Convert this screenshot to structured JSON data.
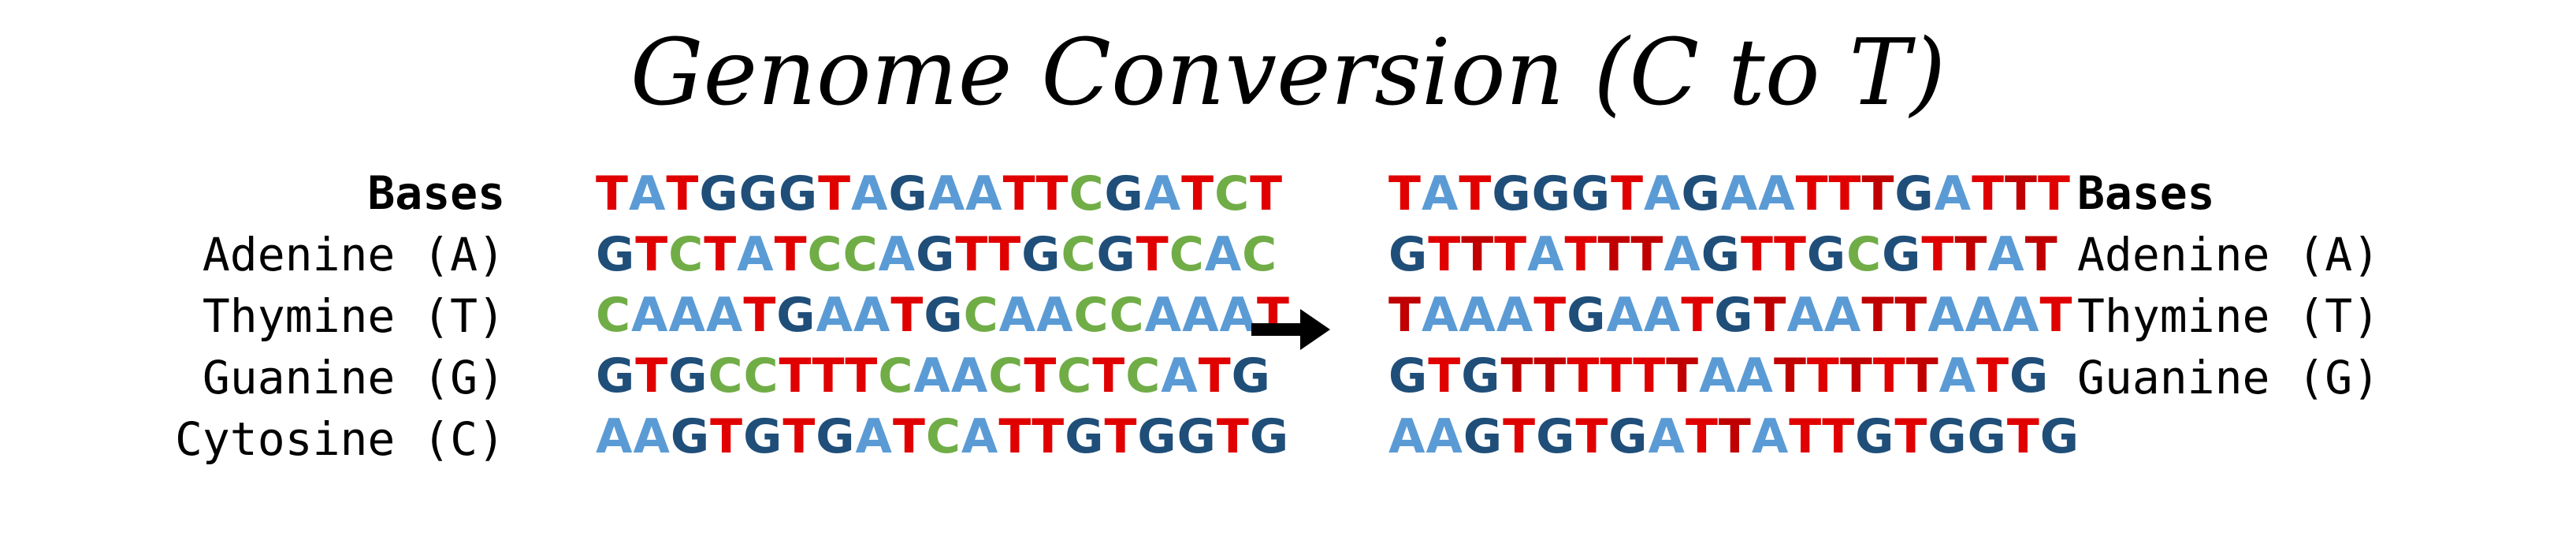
{
  "title": "Genome Conversion (C to T)",
  "colors": {
    "A": "#5b9bd5",
    "T": "#e00000",
    "G": "#1f4e79",
    "C": "#70ad47",
    "T_converted": "#c00000",
    "text": "#000000"
  },
  "legend_left": {
    "heading": "Bases",
    "items": [
      "Adenine (A)",
      "Thymine (T)",
      "Guanine (G)",
      "Cytosine (C)"
    ]
  },
  "legend_right": {
    "heading": "Bases",
    "items": [
      "Adenine (A)",
      "Thymine (T)",
      "Guanine (G)"
    ]
  },
  "original_sequence": [
    "TATGGGTAGAATTCGATCT",
    "GTCTATCCAGTTGCGTCAC",
    "CAAATGAATGCAACCAAAT",
    "GTGCCTTTCAACTCTCATG",
    "AAGTGTGATCATTGTGGTG"
  ],
  "converted_sequence": [
    "TATGGGTAGAATTTGATTT",
    "GTTTATTTAGTTGCGTTAT",
    "TAAATGAATGTAATTAAAT",
    "GTGTTTTTTAATTTTTATG",
    "AAGTGTGATTATTGTGGTG"
  ],
  "arrow_icon": "right-arrow-icon"
}
